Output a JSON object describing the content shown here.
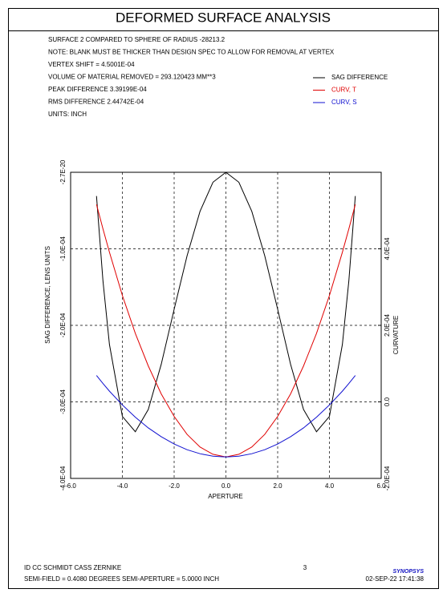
{
  "chart_data": {
    "type": "line",
    "title": "DEFORMED SURFACE ANALYSIS",
    "notes": [
      "SURFACE   2 COMPARED TO SPHERE OF RADIUS   -28213.2",
      "NOTE: BLANK MUST BE THICKER THAN DESIGN SPEC TO ALLOW FOR REMOVAL AT VERTEX",
      "VERTEX SHIFT =  4.5001E-04",
      "VOLUME OF MATERIAL REMOVED =  293.120423 MM**3",
      "PEAK DIFFERENCE  3.39199E-04",
      "RMS DIFFERENCE  2.44742E-04",
      "UNITS: INCH"
    ],
    "x_label": "APERTURE",
    "y_label": "SAG DIFFERENCE, LENS UNITS",
    "y2_label": "CURVATURE",
    "x": [
      -5,
      -4.75,
      -4.5,
      -4,
      -3.5,
      -3,
      -2.5,
      -2,
      -1.5,
      -1,
      -0.5,
      0,
      0.5,
      1,
      1.5,
      2,
      2.5,
      3,
      3.5,
      4,
      4.5,
      4.75,
      5
    ],
    "series": [
      {
        "name": "SAG DIFFERENCE",
        "color": "#000000",
        "values": [
          -3.1e-05,
          -0.000142,
          -0.000225,
          -0.000319,
          -0.000339,
          -0.00031,
          -0.000251,
          -0.000179,
          -0.000109,
          -5.1e-05,
          -1.3e-05,
          0,
          -1.3e-05,
          -5.1e-05,
          -0.000109,
          -0.000179,
          -0.000251,
          -0.00031,
          -0.000339,
          -0.000319,
          -0.000225,
          -0.000142,
          -3.1e-05
        ]
      },
      {
        "name": "CURV, T",
        "color": "#e00000",
        "axis": "y2",
        "values": [
          0.000516,
          0.000452,
          0.000391,
          0.000278,
          0.000179,
          9.4e-05,
          2.1e-05,
          -3.8e-05,
          -8.5e-05,
          -0.000118,
          -0.000137,
          -0.000144,
          -0.000137,
          -0.000118,
          -8.5e-05,
          -3.8e-05,
          2.1e-05,
          9.4e-05,
          0.000179,
          0.000278,
          0.000391,
          0.000452,
          0.000516
        ]
      },
      {
        "name": "CURV, S",
        "color": "#1010d0",
        "axis": "y2",
        "values": [
          6.9e-05,
          4.8e-05,
          2.8e-05,
          -8e-06,
          -4e-05,
          -6.8e-05,
          -9.1e-05,
          -0.00011,
          -0.000125,
          -0.0001355,
          -0.000142,
          -0.000144,
          -0.000142,
          -0.0001355,
          -0.000125,
          -0.00011,
          -9.1e-05,
          -6.8e-05,
          -4e-05,
          -8e-06,
          2.8e-05,
          4.8e-05,
          6.9e-05
        ]
      }
    ],
    "xlim": [
      -6,
      6
    ],
    "xticks": [
      {
        "value": -6,
        "label": "-6.0"
      },
      {
        "value": -4,
        "label": "-4.0"
      },
      {
        "value": -2,
        "label": "-2.0"
      },
      {
        "value": 0,
        "label": "0.0"
      },
      {
        "value": 2,
        "label": "2.0"
      },
      {
        "value": 4,
        "label": "4.0"
      },
      {
        "value": 6,
        "label": "6.0"
      }
    ],
    "ylim": [
      -0.0004,
      -2.7e-20
    ],
    "yticks": [
      {
        "value": -2.7e-20,
        "label": "-2.7E-20"
      },
      {
        "value": -0.0001,
        "label": "-1.0E-04"
      },
      {
        "value": -0.0002,
        "label": "-2.0E-04"
      },
      {
        "value": -0.0003,
        "label": "-3.0E-04"
      },
      {
        "value": -0.0004,
        "label": "-4.0E-04"
      }
    ],
    "y2lim": [
      -0.0002,
      0.0006
    ],
    "y2ticks": [
      {
        "value": 0.0004,
        "label": "4.0E-04"
      },
      {
        "value": 0.0002,
        "label": "2.0E-04"
      },
      {
        "value": 0,
        "label": "0.0"
      },
      {
        "value": -0.0002,
        "label": "-2.0E-04"
      }
    ],
    "grid": true,
    "legend": "upper right",
    "footer": {
      "id": "ID CC SCHMIDT CASS ZERNIKE",
      "page": "3",
      "brand": "SYNOPSYS",
      "field": "SEMI-FIELD =   0.4080 DEGREES   SEMI-APERTURE =  5.0000 INCH",
      "date": "02-SEP-22  17:41:38"
    }
  }
}
